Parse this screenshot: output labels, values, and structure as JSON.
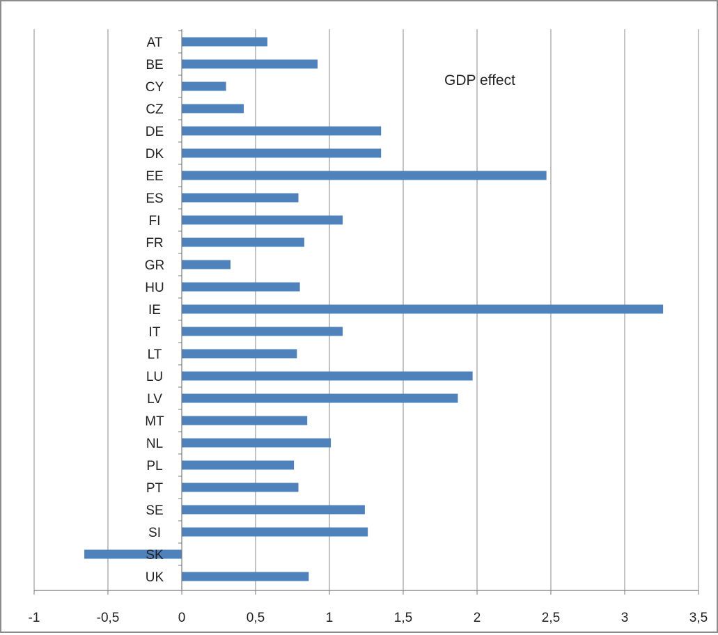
{
  "chart_data": {
    "type": "bar",
    "orientation": "horizontal",
    "categories": [
      "AT",
      "BE",
      "CY",
      "CZ",
      "DE",
      "DK",
      "EE",
      "ES",
      "FI",
      "FR",
      "GR",
      "HU",
      "IE",
      "IT",
      "LT",
      "LU",
      "LV",
      "MT",
      "NL",
      "PL",
      "PT",
      "SE",
      "SI",
      "SK",
      "UK"
    ],
    "series": [
      {
        "name": "GDP effect",
        "color": "#4f81bd",
        "values": [
          0.58,
          0.92,
          0.3,
          0.42,
          1.35,
          1.35,
          2.47,
          0.79,
          1.09,
          0.83,
          0.33,
          0.8,
          3.26,
          1.09,
          0.78,
          1.97,
          1.87,
          0.85,
          1.01,
          0.76,
          0.79,
          1.24,
          1.26,
          -0.66,
          0.86
        ]
      }
    ],
    "xlim": [
      -1,
      3.5
    ],
    "xticks": [
      -1,
      -0.5,
      0,
      0.5,
      1,
      1.5,
      2,
      2.5,
      3,
      3.5
    ],
    "xtick_labels": [
      "-1",
      "-0,5",
      "0",
      "0,5",
      "1",
      "1,5",
      "2",
      "2,5",
      "3",
      "3,5"
    ],
    "grid": "vertical",
    "legend_position": "top-right",
    "legend_text": "GDP effect"
  }
}
